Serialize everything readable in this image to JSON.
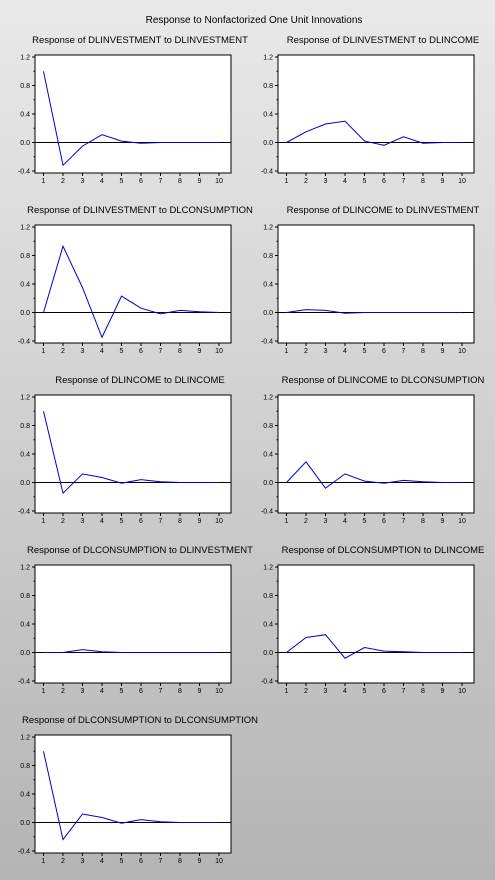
{
  "figure_title": "Response to Nonfactorized One Unit Innovations",
  "chart_data": [
    {
      "type": "line",
      "title": "Response of DLINVESTMENT to DLINVESTMENT",
      "x": [
        1,
        2,
        3,
        4,
        5,
        6,
        7,
        8,
        9,
        10
      ],
      "values": [
        1.0,
        -0.32,
        -0.05,
        0.11,
        0.02,
        -0.01,
        0,
        0,
        0,
        0
      ],
      "ylim": [
        -0.4,
        1.2
      ],
      "yticks": [
        "1.2",
        "0.8",
        "0.4",
        "0.0",
        "-0.4"
      ],
      "xticks": [
        "1",
        "2",
        "3",
        "4",
        "5",
        "6",
        "7",
        "8",
        "9",
        "10"
      ],
      "grid": false
    },
    {
      "type": "line",
      "title": "Response of DLINVESTMENT to DLINCOME",
      "x": [
        1,
        2,
        3,
        4,
        5,
        6,
        7,
        8,
        9,
        10
      ],
      "values": [
        0.0,
        0.15,
        0.26,
        0.3,
        0.02,
        -0.04,
        0.08,
        -0.01,
        0,
        0
      ],
      "ylim": [
        -0.4,
        1.2
      ],
      "yticks": [
        "1.2",
        "0.8",
        "0.4",
        "0.0",
        "-0.4"
      ],
      "xticks": [
        "1",
        "2",
        "3",
        "4",
        "5",
        "6",
        "7",
        "8",
        "9",
        "10"
      ],
      "grid": false
    },
    {
      "type": "line",
      "title": "Response of DLINVESTMENT to DLCONSUMPTION",
      "x": [
        1,
        2,
        3,
        4,
        5,
        6,
        7,
        8,
        9,
        10
      ],
      "values": [
        0.0,
        0.93,
        0.35,
        -0.35,
        0.23,
        0.06,
        -0.02,
        0.03,
        0.01,
        0
      ],
      "ylim": [
        -0.4,
        1.2
      ],
      "yticks": [
        "1.2",
        "0.8",
        "0.4",
        "0.0",
        "-0.4"
      ],
      "xticks": [
        "1",
        "2",
        "3",
        "4",
        "5",
        "6",
        "7",
        "8",
        "9",
        "10"
      ],
      "grid": false
    },
    {
      "type": "line",
      "title": "Response of DLINCOME to DLINVESTMENT",
      "x": [
        1,
        2,
        3,
        4,
        5,
        6,
        7,
        8,
        9,
        10
      ],
      "values": [
        0.0,
        0.04,
        0.03,
        -0.01,
        0,
        0,
        0,
        0,
        0,
        0
      ],
      "ylim": [
        -0.4,
        1.2
      ],
      "yticks": [
        "1.2",
        "0.8",
        "0.4",
        "0.0",
        "-0.4"
      ],
      "xticks": [
        "1",
        "2",
        "3",
        "4",
        "5",
        "6",
        "7",
        "8",
        "9",
        "10"
      ],
      "grid": false
    },
    {
      "type": "line",
      "title": "Response of DLINCOME to DLINCOME",
      "x": [
        1,
        2,
        3,
        4,
        5,
        6,
        7,
        8,
        9,
        10
      ],
      "values": [
        1.0,
        -0.15,
        0.12,
        0.07,
        -0.01,
        0.04,
        0.01,
        0,
        0,
        0
      ],
      "ylim": [
        -0.4,
        1.2
      ],
      "yticks": [
        "1.2",
        "0.8",
        "0.4",
        "0.0",
        "-0.4"
      ],
      "xticks": [
        "1",
        "2",
        "3",
        "4",
        "5",
        "6",
        "7",
        "8",
        "9",
        "10"
      ],
      "grid": false
    },
    {
      "type": "line",
      "title": "Response of DLINCOME to DLCONSUMPTION",
      "x": [
        1,
        2,
        3,
        4,
        5,
        6,
        7,
        8,
        9,
        10
      ],
      "values": [
        0.0,
        0.29,
        -0.08,
        0.12,
        0.02,
        -0.01,
        0.03,
        0.01,
        0,
        0
      ],
      "ylim": [
        -0.4,
        1.2
      ],
      "yticks": [
        "1.2",
        "0.8",
        "0.4",
        "0.0",
        "-0.4"
      ],
      "xticks": [
        "1",
        "2",
        "3",
        "4",
        "5",
        "6",
        "7",
        "8",
        "9",
        "10"
      ],
      "grid": false
    },
    {
      "type": "line",
      "title": "Response of DLCONSUMPTION to DLINVESTMENT",
      "x": [
        1,
        2,
        3,
        4,
        5,
        6,
        7,
        8,
        9,
        10
      ],
      "values": [
        0.0,
        0.0,
        0.04,
        0.01,
        0,
        0,
        0,
        0,
        0,
        0
      ],
      "ylim": [
        -0.4,
        1.2
      ],
      "yticks": [
        "1.2",
        "0.8",
        "0.4",
        "0.0",
        "-0.4"
      ],
      "xticks": [
        "1",
        "2",
        "3",
        "4",
        "5",
        "6",
        "7",
        "8",
        "9",
        "10"
      ],
      "grid": false
    },
    {
      "type": "line",
      "title": "Response of DLCONSUMPTION to DLINCOME",
      "x": [
        1,
        2,
        3,
        4,
        5,
        6,
        7,
        8,
        9,
        10
      ],
      "values": [
        0.0,
        0.21,
        0.25,
        -0.08,
        0.07,
        0.02,
        0.01,
        0,
        0,
        0
      ],
      "ylim": [
        -0.4,
        1.2
      ],
      "yticks": [
        "1.2",
        "0.8",
        "0.4",
        "0.0",
        "-0.4"
      ],
      "xticks": [
        "1",
        "2",
        "3",
        "4",
        "5",
        "6",
        "7",
        "8",
        "9",
        "10"
      ],
      "grid": false
    },
    {
      "type": "line",
      "title": "Response of DLCONSUMPTION to DLCONSUMPTION",
      "x": [
        1,
        2,
        3,
        4,
        5,
        6,
        7,
        8,
        9,
        10
      ],
      "values": [
        1.0,
        -0.24,
        0.12,
        0.07,
        -0.01,
        0.04,
        0.01,
        0,
        0,
        0
      ],
      "ylim": [
        -0.4,
        1.2
      ],
      "yticks": [
        "1.2",
        "0.8",
        "0.4",
        "0.0",
        "-0.4"
      ],
      "xticks": [
        "1",
        "2",
        "3",
        "4",
        "5",
        "6",
        "7",
        "8",
        "9",
        "10"
      ],
      "grid": false
    }
  ]
}
